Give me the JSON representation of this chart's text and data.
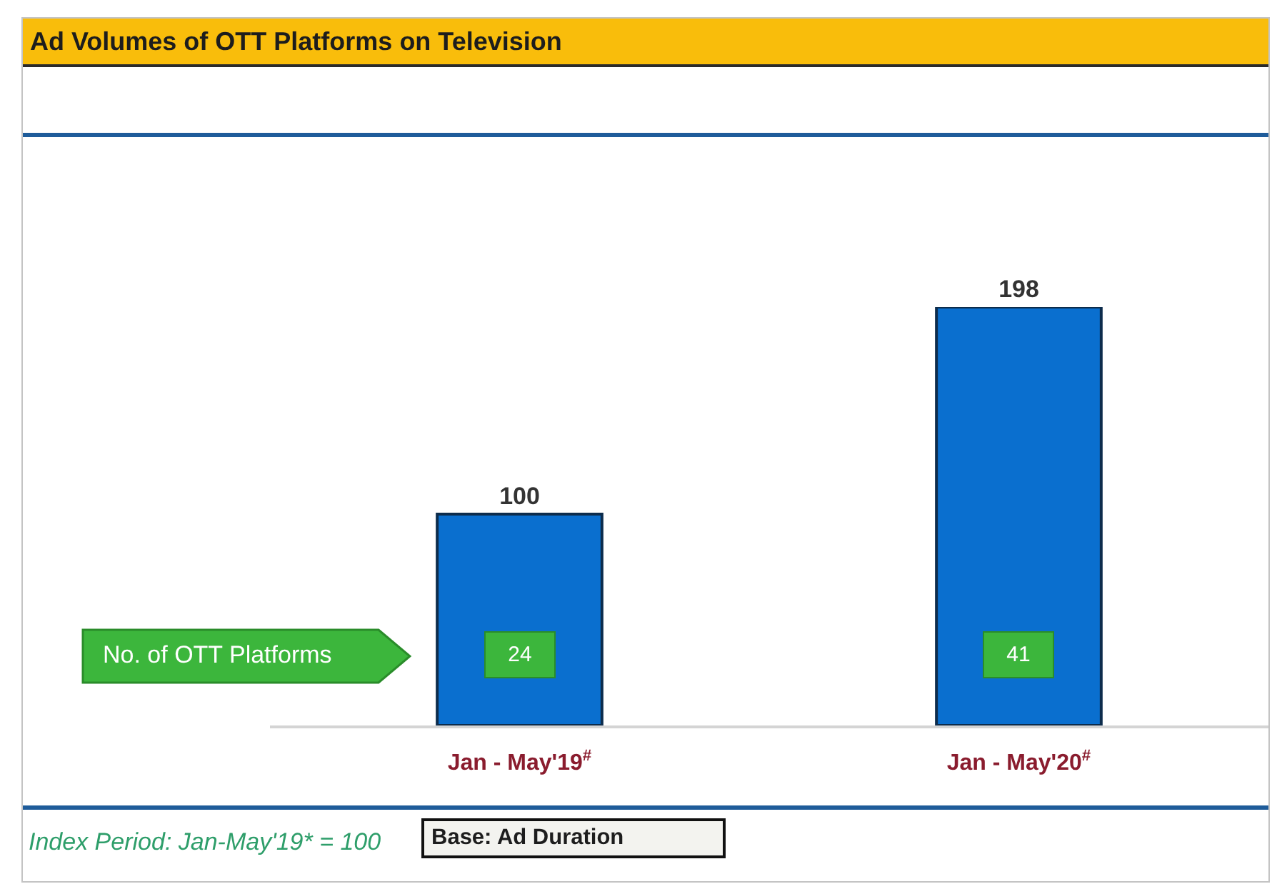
{
  "chart_data": {
    "type": "bar",
    "title": "Ad Volumes of OTT Platforms on Television",
    "categories": [
      "Jan - May'19$^{#}$",
      "Jan - May'20$^{#}$"
    ],
    "values": [
      100,
      198
    ],
    "color": "#0a6fcf",
    "data_labels": true,
    "tick_labels": "x",
    "annotations": [
      "No. of OTT Platforms",
      "24",
      "41",
      "Index Period: Jan-May'19* = 100",
      "Base: Ad Duration"
    ]
  }
}
